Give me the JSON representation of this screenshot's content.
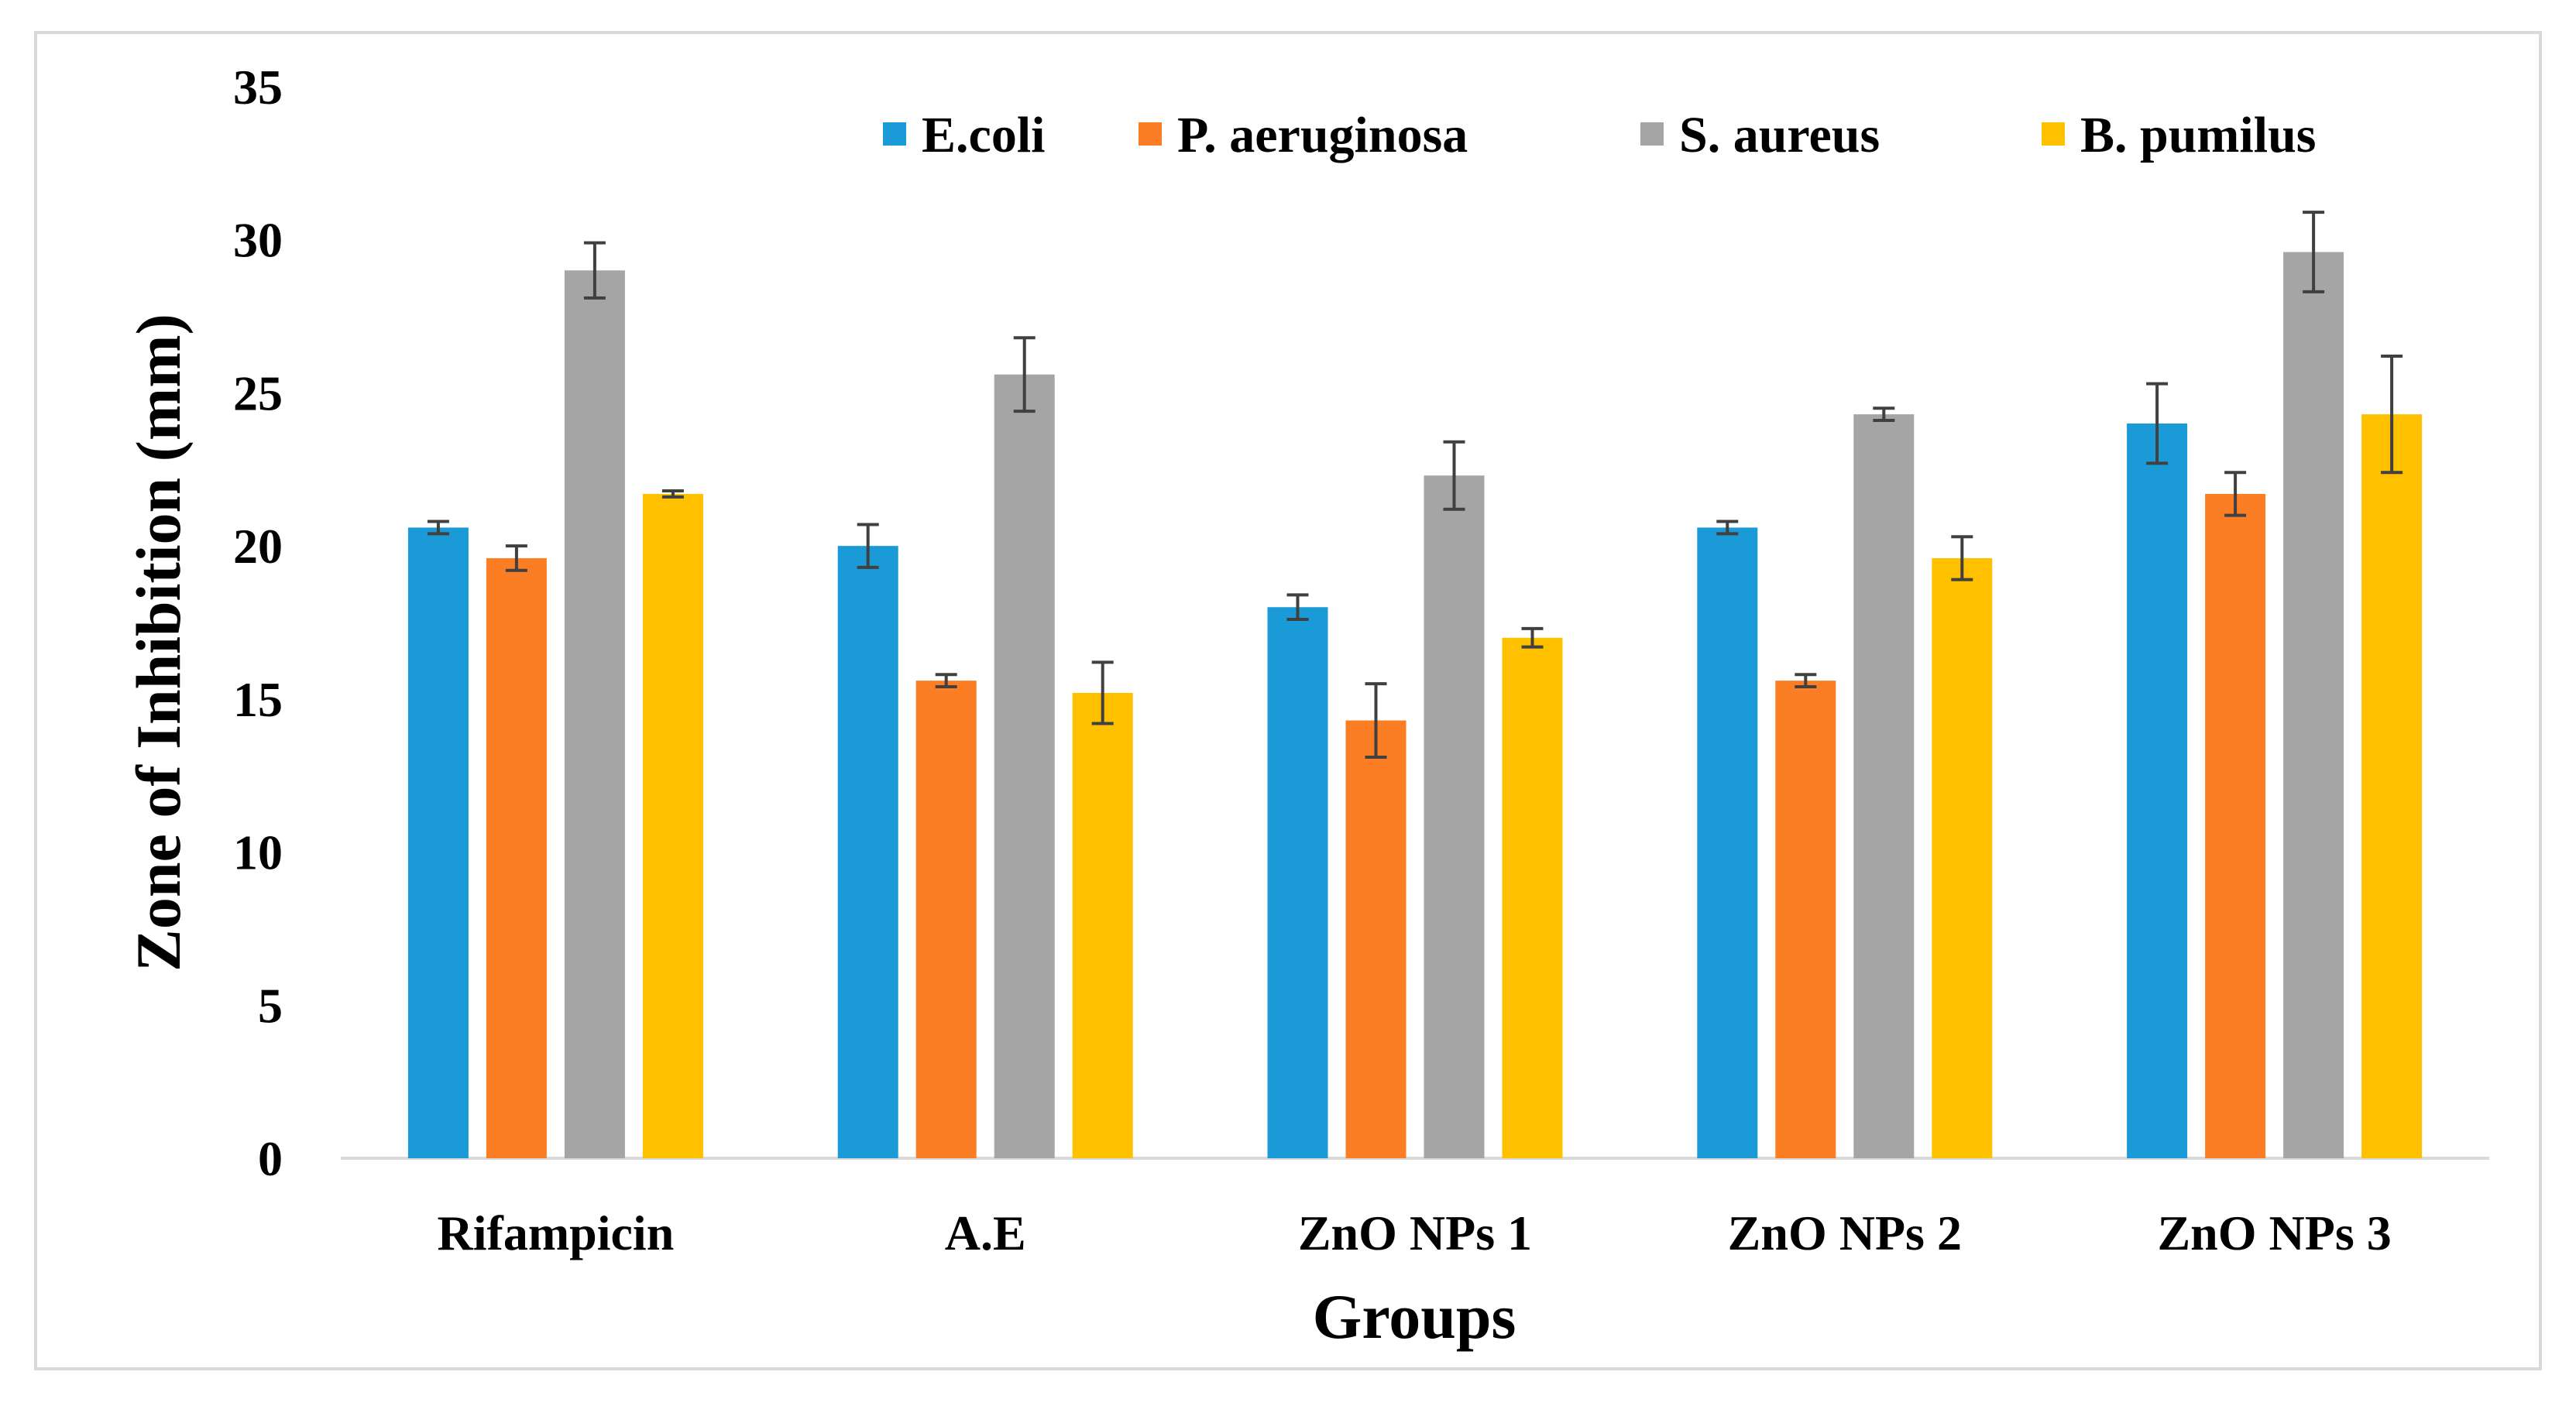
{
  "chart_data": {
    "type": "bar",
    "title": "",
    "xlabel": "Groups",
    "ylabel": "Zone of Inhibition (mm)",
    "ylim": [
      0,
      35
    ],
    "yticks": [
      "0",
      "5",
      "10",
      "15",
      "20",
      "25",
      "30",
      "35"
    ],
    "categories": [
      "Rifampicin",
      "A.E",
      "ZnO NPs 1",
      "ZnO NPs 2",
      "ZnO NPs 3"
    ],
    "grid": false,
    "legend_position": "top",
    "series": [
      {
        "name": "E.coli",
        "color": "#1a9ad6",
        "values": [
          20.6,
          20.0,
          18.0,
          20.6,
          24.0
        ],
        "errors": [
          0.2,
          0.7,
          0.4,
          0.2,
          1.3
        ]
      },
      {
        "name": "P. aeruginosa",
        "color": "#fb7d24",
        "values": [
          19.6,
          15.6,
          14.3,
          15.6,
          21.7
        ],
        "errors": [
          0.4,
          0.2,
          1.2,
          0.2,
          0.7
        ]
      },
      {
        "name": "S. aureus",
        "color": "#a5a5a5",
        "values": [
          29.0,
          25.6,
          22.3,
          24.3,
          29.6
        ],
        "errors": [
          0.9,
          1.2,
          1.1,
          0.2,
          1.3
        ]
      },
      {
        "name": "B. pumilus",
        "color": "#ffc000",
        "values": [
          21.7,
          15.2,
          17.0,
          19.6,
          24.3
        ],
        "errors": [
          0.1,
          1.0,
          0.3,
          0.7,
          1.9
        ]
      }
    ]
  }
}
